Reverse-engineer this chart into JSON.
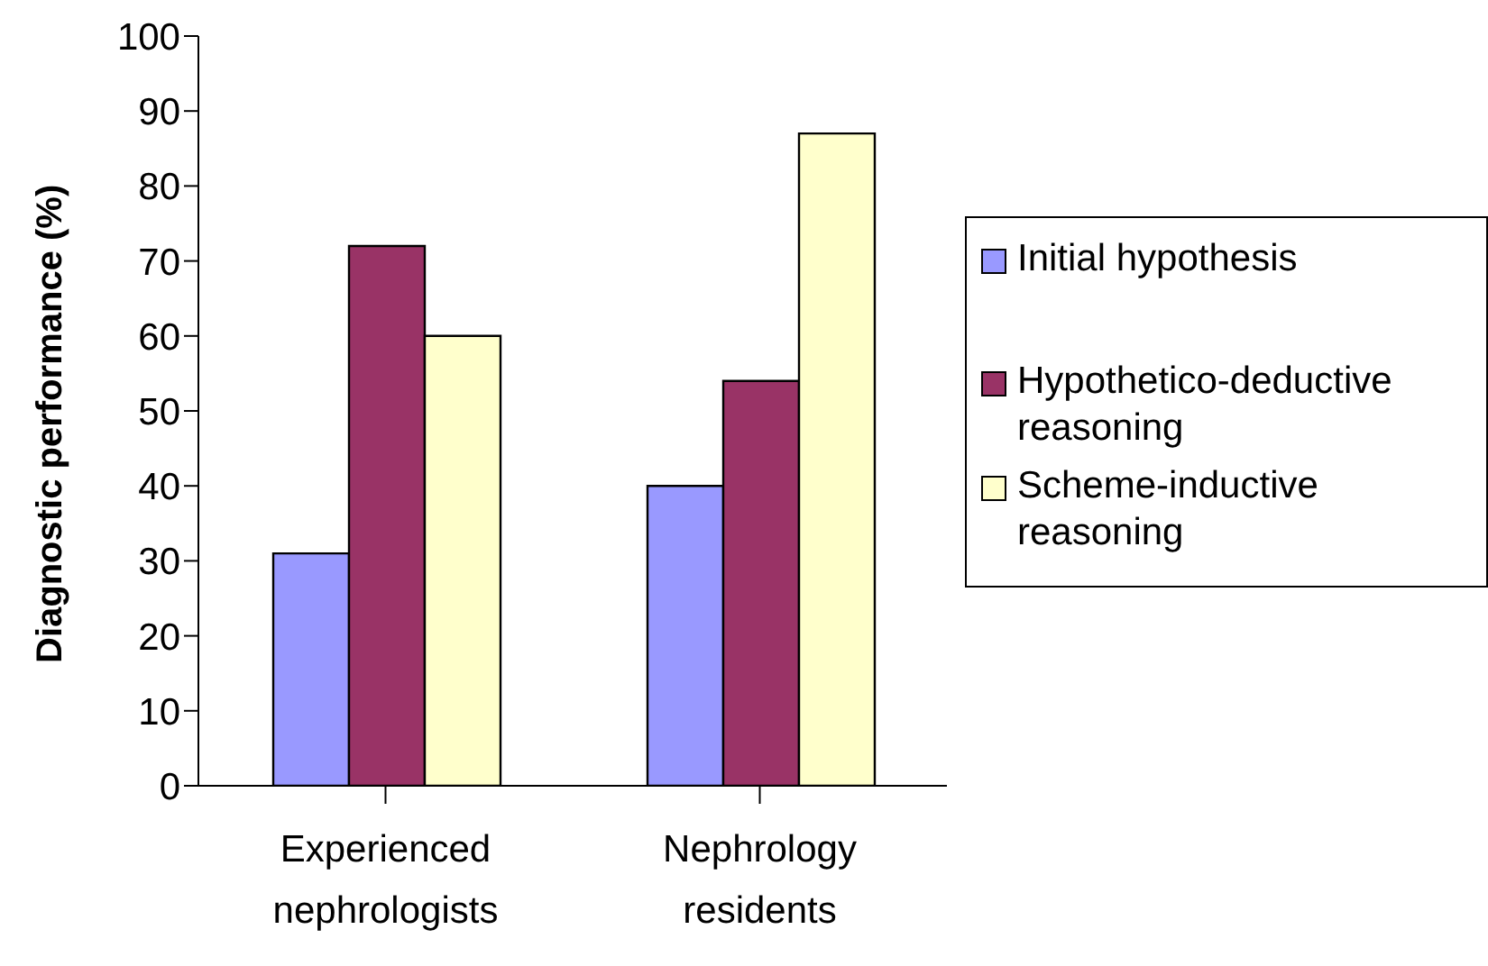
{
  "chart_data": {
    "type": "bar",
    "ylabel": "Diagnostic performance (%)",
    "categories": [
      "Experienced nephrologists",
      "Nephrology residents"
    ],
    "series": [
      {
        "name": "Initial hypothesis",
        "color": "#9999ff",
        "values": [
          31,
          40
        ]
      },
      {
        "name": "Hypothetico-deductive reasoning",
        "color": "#993366",
        "values": [
          72,
          54
        ]
      },
      {
        "name": "Scheme-inductive reasoning",
        "color": "#ffffcc",
        "values": [
          60,
          87
        ]
      }
    ],
    "ylim": [
      0,
      100
    ],
    "yticks": [
      0,
      10,
      20,
      30,
      40,
      50,
      60,
      70,
      80,
      90,
      100
    ],
    "grid": false,
    "legend": "right"
  }
}
